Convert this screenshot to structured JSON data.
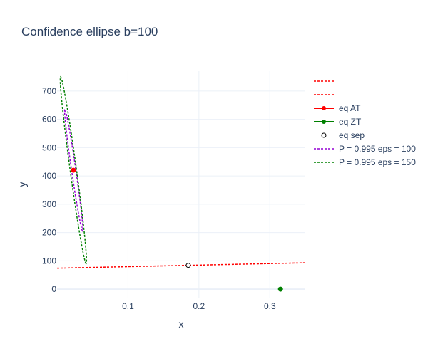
{
  "chart_data": {
    "type": "scatter",
    "title": "Confidence ellipse b=100",
    "xlabel": "x",
    "ylabel": "y",
    "xlim": [
      0.0,
      0.35
    ],
    "ylim": [
      -30,
      770
    ],
    "x_ticks": [
      0.1,
      0.2,
      0.3
    ],
    "y_ticks": [
      0,
      100,
      200,
      300,
      400,
      500,
      600,
      700
    ],
    "x_tick_labels": [
      "0.1",
      "0.2",
      "0.3"
    ],
    "y_tick_labels": [
      "0",
      "100",
      "200",
      "300",
      "400",
      "500",
      "600",
      "700"
    ],
    "grid": true,
    "legend_position": "right",
    "series": [
      {
        "name": "",
        "style": "dotted-line",
        "color": "#ff0000",
        "x": [
          0.0,
          0.35
        ],
        "y": [
          74,
          93
        ]
      },
      {
        "name": "",
        "style": "dotted-line",
        "color": "#ff0000",
        "x": [],
        "y": []
      },
      {
        "name": "eq AT",
        "style": "marker",
        "color": "#ff0000",
        "x": [
          0.023
        ],
        "y": [
          420
        ]
      },
      {
        "name": "eq ZT",
        "style": "marker",
        "color": "#008000",
        "x": [
          0.315
        ],
        "y": [
          0
        ]
      },
      {
        "name": "eq sep",
        "style": "open-marker",
        "color": "#000000",
        "x": [
          0.185
        ],
        "y": [
          84
        ]
      },
      {
        "name": "P = 0.995 eps = 100",
        "style": "dotted-ellipse",
        "color": "#9400d3",
        "center": [
          0.023,
          420
        ],
        "endpoints": [
          [
            0.011,
            635
          ],
          [
            0.036,
            205
          ]
        ],
        "half_width": 0.003
      },
      {
        "name": "P = 0.995 eps = 150",
        "style": "dotted-ellipse",
        "color": "#008000",
        "center": [
          0.023,
          420
        ],
        "endpoints": [
          [
            0.005,
            750
          ],
          [
            0.041,
            90
          ]
        ],
        "half_width": 0.0045
      }
    ]
  }
}
